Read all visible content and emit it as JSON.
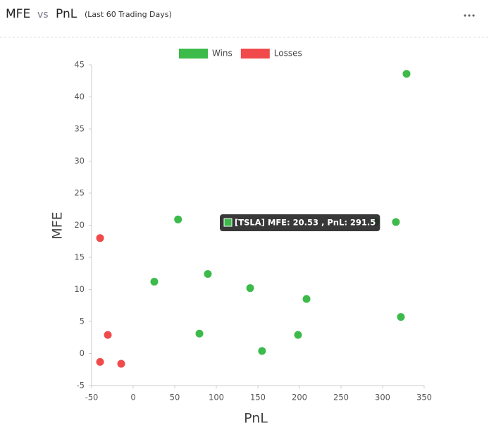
{
  "header": {
    "title": "MFE",
    "vs": "vs",
    "title2": "PnL",
    "subtitle": "(Last 60 Trading Days)"
  },
  "chart_data": {
    "type": "scatter",
    "x_label": "PnL",
    "y_label": "MFE",
    "tooltip": "[TSLA] MFE: 20.53 , PnL: 291.5",
    "xlim": [
      -50,
      350
    ],
    "xticks": [
      -50,
      0,
      50,
      100,
      150,
      200,
      250,
      300,
      350
    ],
    "ylim": [
      -5,
      45
    ],
    "yticks": [
      -5,
      0,
      5,
      10,
      15,
      20,
      25,
      30,
      35,
      40,
      45
    ],
    "series": [
      {
        "name": "Wins",
        "color": "#3cba4a",
        "x": [
          328.8,
          291.5,
          316,
          54,
          25.4,
          89.8,
          140.7,
          208.5,
          322,
          79.7,
          198.3,
          155
        ],
        "values": [
          43.6,
          20.53,
          20.5,
          20.9,
          11.2,
          12.4,
          10.2,
          8.5,
          5.7,
          3.1,
          2.9,
          0.4
        ]
      },
      {
        "name": "Losses",
        "color": "#f04a4a",
        "x": [
          -39.8,
          -30.5,
          -39.8,
          -14.4
        ],
        "values": [
          18,
          2.9,
          -1.3,
          -1.6
        ]
      }
    ]
  }
}
